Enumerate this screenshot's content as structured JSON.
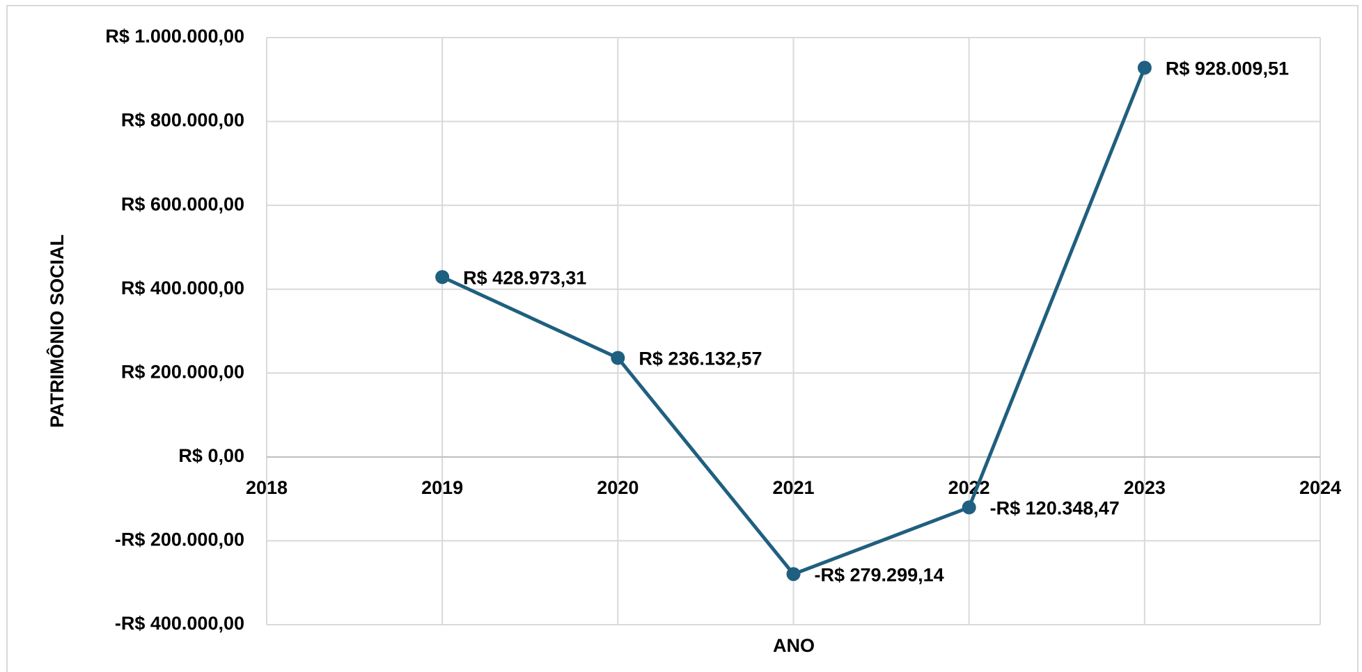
{
  "chart_data": {
    "type": "line",
    "x_label": "ANO",
    "y_label": "PATRIMÔNIO SOCIAL",
    "x": [
      2019,
      2020,
      2021,
      2022,
      2023
    ],
    "series": [
      {
        "name": "Patrimônio Social",
        "color": "#1f5f7f",
        "values": [
          428973.31,
          236132.57,
          -279299.14,
          -120348.47,
          928009.51
        ],
        "value_labels": [
          "R$ 428.973,31",
          "R$ 236.132,57",
          "-R$ 279.299,14",
          "-R$ 120.348,47",
          "R$ 928.009,51"
        ]
      }
    ],
    "negative_color": "#ff0000",
    "xlim": [
      2018,
      2024
    ],
    "xticks": [
      2018,
      2019,
      2020,
      2021,
      2022,
      2023,
      2024
    ],
    "ylim": [
      -400000,
      1000000
    ],
    "yticks": [
      {
        "value": -400000,
        "label": "-R$ 400.000,00"
      },
      {
        "value": -200000,
        "label": "-R$ 200.000,00"
      },
      {
        "value": 0,
        "label": "R$ 0,00"
      },
      {
        "value": 200000,
        "label": "R$ 200.000,00"
      },
      {
        "value": 400000,
        "label": "R$ 400.000,00"
      },
      {
        "value": 600000,
        "label": "R$ 600.000,00"
      },
      {
        "value": 800000,
        "label": "R$ 800.000,00"
      },
      {
        "value": 1000000,
        "label": "R$ 1.000.000,00"
      }
    ],
    "grid": true
  }
}
